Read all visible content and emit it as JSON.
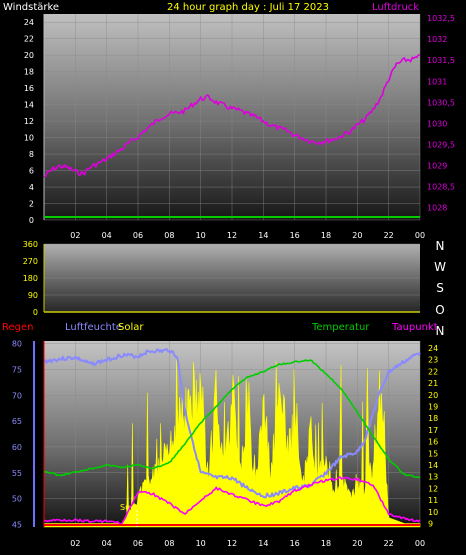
{
  "header": {
    "left_label": "Windstärke",
    "title": "24 hour graph day : Juli 17 2023",
    "right_label": "Luftdruck"
  },
  "colors": {
    "background": "#000000",
    "wind": "#00cc00",
    "pressure": "#dd00dd",
    "humidity": "#8a8aff",
    "temperature": "#00cc00",
    "dewpoint": "#ff00ff",
    "solar": "#ffff00",
    "rain": "#ff0000",
    "axis_text_white": "#ffffff",
    "axis_text_yellow": "#ffff00",
    "axis_text_magenta": "#dd00dd"
  },
  "chart_data": [
    {
      "type": "line",
      "title": "24 hour graph day : Juli 17 2023",
      "x_ticks": [
        "02",
        "04",
        "06",
        "08",
        "10",
        "12",
        "14",
        "16",
        "18",
        "20",
        "22",
        "00"
      ],
      "y_left": {
        "label": "Windstärke",
        "ticks": [
          "0",
          "2",
          "4",
          "6",
          "8",
          "10",
          "12",
          "14",
          "16",
          "18",
          "20",
          "22",
          "24"
        ],
        "ylim": [
          0,
          25
        ]
      },
      "y_right": {
        "label": "Luftdruck",
        "ticks": [
          "1028",
          "1028,5",
          "1029",
          "1029,5",
          "1030",
          "1030,5",
          "1031",
          "1031,5",
          "1032",
          "1032,5"
        ],
        "ylim": [
          1027.7,
          1032.6
        ]
      },
      "series": [
        {
          "name": "Luftdruck",
          "axis": "right",
          "x": [
            0,
            0.5,
            1,
            1.5,
            2,
            2.5,
            3,
            3.5,
            4,
            4.5,
            5,
            5.5,
            6,
            6.5,
            7,
            7.5,
            8,
            8.5,
            9,
            9.5,
            10,
            10.5,
            11,
            11.5,
            12,
            12.5,
            13,
            13.5,
            14,
            14.5,
            15,
            15.5,
            16,
            16.5,
            17,
            17.5,
            18,
            18.5,
            19,
            19.5,
            20,
            20.5,
            21,
            21.5,
            22,
            22.5,
            23,
            23.5,
            24
          ],
          "y": [
            1028.72,
            1028.9,
            1028.98,
            1028.95,
            1028.85,
            1028.8,
            1028.97,
            1029.05,
            1029.15,
            1029.28,
            1029.4,
            1029.55,
            1029.68,
            1029.85,
            1030.0,
            1030.15,
            1030.22,
            1030.25,
            1030.3,
            1030.45,
            1030.58,
            1030.62,
            1030.5,
            1030.42,
            1030.35,
            1030.3,
            1030.22,
            1030.15,
            1030.05,
            1029.95,
            1029.88,
            1029.82,
            1029.72,
            1029.65,
            1029.58,
            1029.55,
            1029.58,
            1029.62,
            1029.7,
            1029.8,
            1029.95,
            1030.1,
            1030.32,
            1030.62,
            1031.05,
            1031.4,
            1031.5,
            1031.52,
            1031.58
          ]
        },
        {
          "name": "Windstärke",
          "axis": "left",
          "x": [
            0,
            24
          ],
          "y": [
            0,
            0
          ]
        }
      ]
    },
    {
      "type": "line",
      "y_left": {
        "ticks": [
          "0",
          "90",
          "180",
          "270",
          "360"
        ],
        "ylim": [
          0,
          360
        ]
      },
      "y_right": {
        "ticks": [
          "N",
          "W",
          "S",
          "O",
          "N"
        ]
      },
      "series": []
    },
    {
      "type": "line",
      "x_ticks": [
        "02",
        "04",
        "06",
        "08",
        "10",
        "12",
        "14",
        "16",
        "18",
        "20",
        "22",
        "00"
      ],
      "legend": {
        "rain": "Regen",
        "humidity": "Luftfeuchte",
        "solar": "Solar",
        "temperature": "Temperatur",
        "dewpoint": "Taupunkt"
      },
      "annotation": "Sun",
      "y_left": {
        "label": "Luftfeuchte",
        "ticks": [
          "45",
          "50",
          "55",
          "60",
          "65",
          "70",
          "75",
          "80"
        ],
        "ylim": [
          44.5,
          80.5
        ]
      },
      "y_right": {
        "label": "Temperatur",
        "ticks": [
          "9",
          "10",
          "11",
          "12",
          "13",
          "14",
          "15",
          "16",
          "17",
          "18",
          "19",
          "20",
          "21",
          "22",
          "23",
          "24"
        ],
        "ylim": [
          8.7,
          24.6
        ]
      },
      "series": [
        {
          "name": "Luftfeuchte",
          "axis": "left",
          "x": [
            0,
            1,
            2,
            3,
            4,
            5,
            6,
            6.5,
            7,
            7.5,
            8,
            8.5,
            9,
            9.5,
            10,
            11,
            12,
            13,
            14,
            15,
            16,
            17,
            18,
            19,
            20,
            20.5,
            21,
            21.5,
            22,
            23,
            24
          ],
          "y": [
            76.5,
            77.0,
            77.3,
            76.0,
            76.8,
            77.8,
            77.5,
            78.3,
            78.6,
            78.5,
            78.8,
            77.5,
            67.0,
            61.0,
            55.0,
            54.0,
            54.0,
            52.0,
            50.5,
            51.0,
            52.0,
            52.5,
            55.0,
            58.0,
            59.0,
            61.5,
            66.5,
            71.0,
            74.5,
            76.5,
            78.3
          ]
        },
        {
          "name": "Temperatur",
          "axis": "right",
          "x": [
            0,
            1,
            2,
            3,
            4,
            5,
            6,
            7,
            8,
            9,
            10,
            11,
            12,
            13,
            14,
            15,
            16,
            17,
            18,
            19,
            20,
            21,
            22,
            23,
            24
          ],
          "y": [
            13.5,
            13.1,
            13.4,
            13.7,
            14.0,
            13.8,
            14.0,
            13.7,
            14.2,
            15.8,
            17.6,
            19.0,
            20.5,
            21.5,
            22.0,
            22.6,
            22.8,
            23.0,
            21.8,
            20.5,
            18.5,
            16.5,
            14.5,
            13.2,
            12.9
          ]
        },
        {
          "name": "Taupunkt",
          "axis": "right",
          "x": [
            0,
            1,
            2,
            3,
            4,
            5,
            6,
            7,
            8,
            9,
            10,
            11,
            12,
            13,
            14,
            15,
            16,
            17,
            18,
            19,
            20,
            21,
            22,
            23,
            24
          ],
          "y": [
            9.2,
            9.3,
            9.3,
            9.2,
            9.2,
            9.0,
            11.7,
            11.5,
            10.7,
            9.8,
            11.0,
            12.0,
            11.5,
            11.0,
            10.5,
            10.9,
            11.8,
            12.3,
            12.7,
            12.9,
            12.8,
            12.3,
            9.8,
            9.4,
            9.2
          ]
        },
        {
          "name": "Solar",
          "axis": "right",
          "x": [
            0,
            5,
            5.5,
            6,
            6.5,
            7,
            7.5,
            8,
            8.5,
            9,
            9.5,
            10,
            10.5,
            11,
            11.5,
            12,
            12.5,
            13,
            13.5,
            14,
            14.5,
            15,
            15.5,
            16,
            16.5,
            17,
            17.5,
            18,
            18.5,
            19,
            19.5,
            20,
            20.5,
            21,
            21.5,
            22,
            23,
            24
          ],
          "y": [
            9.0,
            9.0,
            10.5,
            12.0,
            13.2,
            14.2,
            15.5,
            16.6,
            19.5,
            21.0,
            22.4,
            24.2,
            13.0,
            24.2,
            15.0,
            23.5,
            14.0,
            23.0,
            13.2,
            21.6,
            14.2,
            23.5,
            17.0,
            19.6,
            12.5,
            18.8,
            13.8,
            16.0,
            12.5,
            13.5,
            12.0,
            13.0,
            13.0,
            15.0,
            23.8,
            9.5,
            9.0,
            9.0
          ]
        },
        {
          "name": "Regen",
          "axis": "left",
          "x": [
            0,
            24
          ],
          "y": [
            45,
            45
          ]
        }
      ]
    }
  ]
}
